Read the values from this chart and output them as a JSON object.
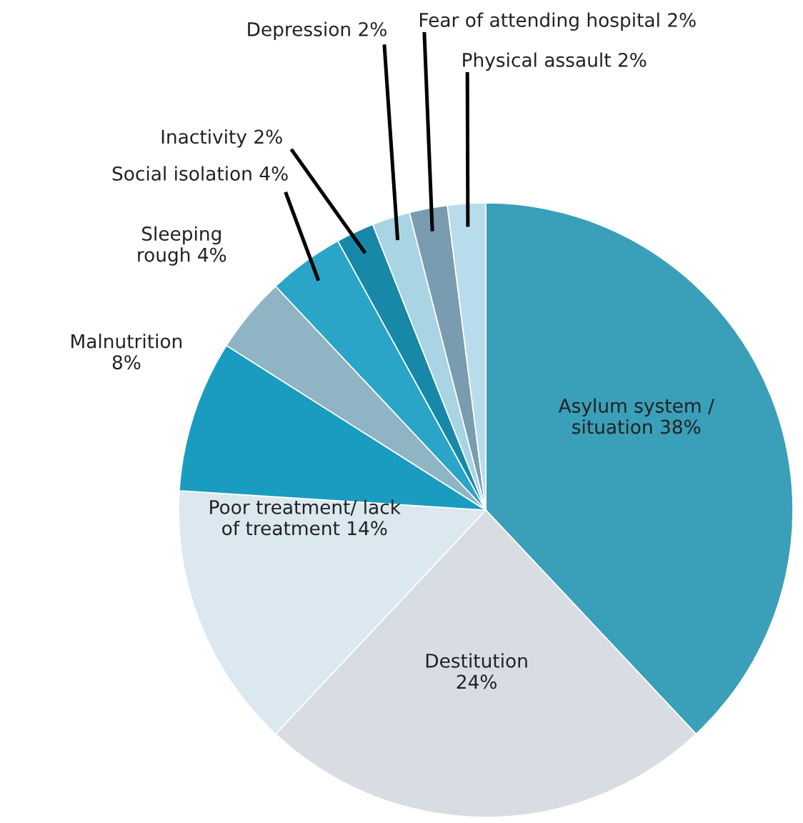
{
  "chart_data": {
    "type": "pie",
    "categories": [
      "Asylum system /\nsituation",
      "Destitution",
      "Poor treatment/ lack\nof treatment",
      "Malnutrition",
      "Sleeping\nrough",
      "Social isolation",
      "Inactivity",
      "Depression",
      "Fear of attending hospital",
      "Physical assault"
    ],
    "values": [
      38,
      24,
      14,
      8,
      4,
      4,
      2,
      2,
      2,
      2
    ],
    "value_labels": [
      "38%",
      "24%",
      "14%",
      "8%",
      "4%",
      "4%",
      "2%",
      "2%",
      "2%",
      "2%"
    ],
    "colors": [
      "#3a9fb8",
      "#d8dde3",
      "#dce8ef",
      "#1a9cc0",
      "#8fb4c4",
      "#2aa5c8",
      "#1788a8",
      "#a8d4e4",
      "#7a9cb0",
      "#b8dcec"
    ]
  }
}
